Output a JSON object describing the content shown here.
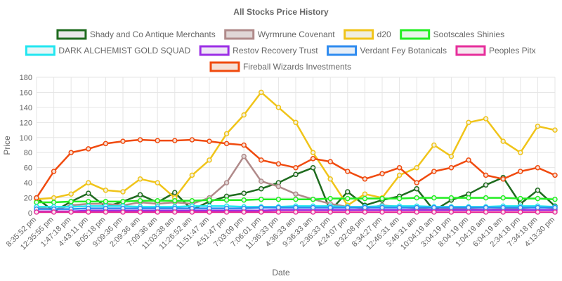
{
  "chart_data": {
    "type": "line",
    "title": "All Stocks Price History",
    "xlabel": "Date",
    "ylabel": "Price",
    "ylim": [
      0,
      180
    ],
    "yticks": [
      0,
      20,
      40,
      60,
      80,
      100,
      120,
      140,
      160,
      180
    ],
    "grid": true,
    "legend_position": "top",
    "x": [
      "8:35:52 pm",
      "12:35:55 pm",
      "1:47:18 pm",
      "4:43:11 pm",
      "8:05:18 pm",
      "9:09:36 pm",
      "2:09:36 am",
      "7:09:36 am",
      "11:03:38 am",
      "11:26:52 am",
      "11:51:47 am",
      "4:51:47 pm",
      "7:03:09 pm",
      "7:06:01 pm",
      "11:36:33 pm",
      "4:36:33 am",
      "9:36:33 am",
      "2:36:33 pm",
      "4:24:07 pm",
      "8:32:08 pm",
      "8:34:27 pm",
      "12:46:31 am",
      "5:46:31 am",
      "10:04:19 am",
      "3:04:19 pm",
      "8:04:19 pm",
      "1:04:19 am",
      "6:04:19 am",
      "2:34:18 pm",
      "7:34:18 pm",
      "4:13:30 pm"
    ],
    "series": [
      {
        "name": "Shady and Co Antique Merchants",
        "color": "#1e6b1e",
        "fill": "#e8e8e8",
        "values": [
          20,
          2,
          15,
          26,
          8,
          15,
          24,
          14,
          27,
          4,
          15,
          22,
          26,
          32,
          40,
          51,
          60,
          3,
          28,
          10,
          17,
          22,
          32,
          3,
          17,
          25,
          37,
          47,
          12,
          30,
          9
        ]
      },
      {
        "name": "Wyrmrune Covenant",
        "color": "#b08a8a",
        "fill": "#e0d6d6",
        "values": [
          8,
          4,
          10,
          12,
          12,
          10,
          14,
          12,
          14,
          12,
          20,
          40,
          75,
          42,
          35,
          25,
          18,
          12,
          8,
          6,
          10,
          8,
          6,
          4,
          6,
          5,
          4,
          5,
          6,
          8,
          6
        ]
      },
      {
        "name": "d20",
        "color": "#f0c419",
        "fill": "#f0eee0",
        "values": [
          18,
          20,
          25,
          40,
          30,
          28,
          45,
          40,
          20,
          50,
          70,
          105,
          130,
          160,
          140,
          120,
          80,
          45,
          10,
          25,
          20,
          50,
          60,
          90,
          75,
          120,
          125,
          95,
          80,
          115,
          110
        ]
      },
      {
        "name": "Sootscales Shinies",
        "color": "#22ee22",
        "fill": "#e6f5e6",
        "values": [
          14,
          14,
          15,
          15,
          15,
          15,
          16,
          16,
          16,
          16,
          17,
          17,
          17,
          18,
          18,
          18,
          18,
          19,
          19,
          19,
          19,
          19,
          20,
          20,
          20,
          20,
          20,
          20,
          19,
          19,
          18
        ]
      },
      {
        "name": "DARK ALCHEMIST GOLD SQUAD",
        "color": "#22e6f0",
        "fill": "#e6f6f7",
        "values": [
          8,
          8,
          8,
          9,
          9,
          9,
          8,
          8,
          8,
          9,
          9,
          9,
          8,
          8,
          8,
          9,
          9,
          9,
          8,
          8,
          9,
          9,
          9,
          8,
          8,
          8,
          8,
          9,
          9,
          9,
          8
        ]
      },
      {
        "name": "Restov Recovery Trust",
        "color": "#9b2ee6",
        "fill": "#efe6f6",
        "values": [
          2,
          2,
          2,
          3,
          3,
          3,
          3,
          3,
          3,
          3,
          3,
          3,
          3,
          3,
          4,
          4,
          4,
          4,
          4,
          4,
          4,
          4,
          4,
          4,
          4,
          4,
          4,
          4,
          4,
          4,
          4
        ]
      },
      {
        "name": "Verdant Fey Botanicals",
        "color": "#2e8bef",
        "fill": "#e6eef7",
        "values": [
          5,
          5,
          5,
          6,
          6,
          6,
          6,
          6,
          6,
          6,
          6,
          6,
          6,
          7,
          7,
          7,
          7,
          7,
          7,
          7,
          7,
          7,
          7,
          7,
          7,
          7,
          7,
          7,
          7,
          7,
          7
        ]
      },
      {
        "name": "Peoples Pitx",
        "color": "#e62e9b",
        "fill": "#f6e6ef",
        "values": [
          1,
          1,
          1,
          1,
          1,
          1,
          1,
          1,
          1,
          1,
          1,
          1,
          1,
          1,
          1,
          1,
          1,
          1,
          1,
          1,
          1,
          1,
          1,
          1,
          1,
          1,
          1,
          1,
          1,
          1,
          1
        ]
      },
      {
        "name": "Fireball Wizards Investments",
        "color": "#f04a0e",
        "fill": "#f5e0d6",
        "values": [
          20,
          55,
          80,
          85,
          92,
          95,
          97,
          96,
          96,
          97,
          95,
          92,
          90,
          70,
          65,
          60,
          72,
          68,
          55,
          45,
          52,
          60,
          40,
          55,
          60,
          70,
          50,
          45,
          55,
          60,
          50
        ]
      }
    ]
  }
}
